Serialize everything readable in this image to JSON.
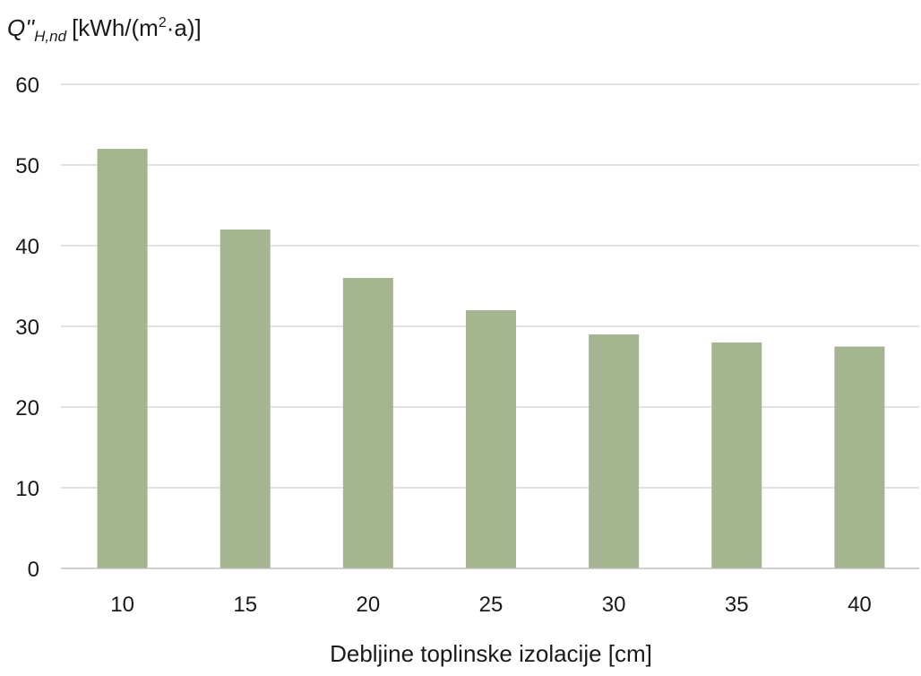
{
  "chart_data": {
    "type": "bar",
    "title": "",
    "ylabel": {
      "symbol": "Q''",
      "subscript": "H,nd",
      "unit_prefix": "[kWh/(m",
      "unit_sup": "2",
      "unit_suffix": "·a)]"
    },
    "xlabel": "Debljine toplinske izolacije [cm]",
    "categories": [
      "10",
      "15",
      "20",
      "25",
      "30",
      "35",
      "40"
    ],
    "values": [
      52,
      42,
      36,
      32,
      29,
      28,
      27.5
    ],
    "ylim": [
      0,
      60
    ],
    "yticks": [
      "0",
      "10",
      "20",
      "30",
      "40",
      "50",
      "60"
    ],
    "grid": true,
    "bar_color": "#a4b590",
    "grid_color": "#d9d9d9"
  }
}
